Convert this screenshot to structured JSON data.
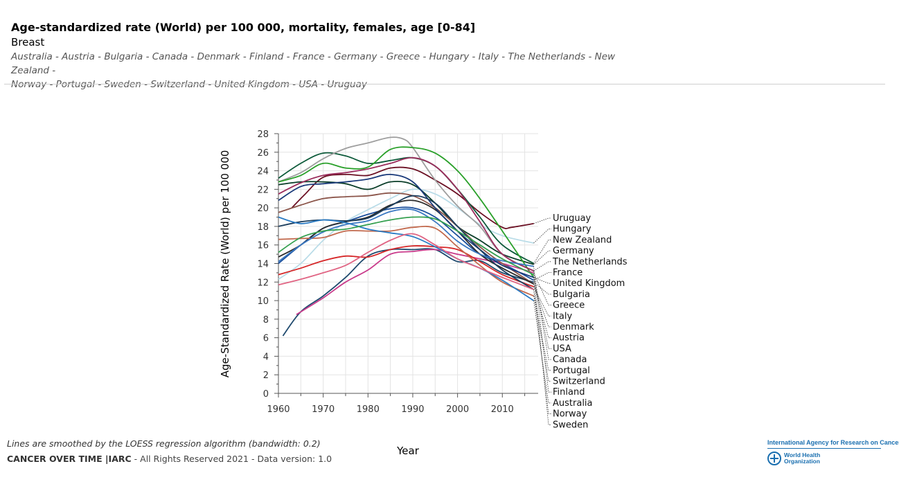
{
  "header": {
    "title": "Age-standardized rate (World) per 100 000, mortality, females, age [0-84]",
    "subtitle": "Breast",
    "countries_line1": "Australia - Austria - Bulgaria - Canada - Denmark - Finland - France - Germany - Greece - Hungary - Italy - The Netherlands - New Zealand -",
    "countries_line2": "Norway - Portugal - Sweden - Switzerland - United Kingdom - USA - Uruguay"
  },
  "footer": {
    "note": "Lines are smoothed by the LOESS regression algorithm (bandwidth: 0.2)",
    "brand": "CANCER OVER TIME |IARC",
    "rights": " - All Rights Reserved 2021 - Data version: 1.0",
    "logo_iarc": "International Agency for Research on Cancer",
    "logo_who_1": "World Health",
    "logo_who_2": "Organization"
  },
  "chart_data": {
    "type": "line",
    "xlabel": "Year",
    "ylabel": "Age-Standardized Rate (World) per 100 000",
    "xlim": [
      1960,
      2018
    ],
    "ylim": [
      0,
      28
    ],
    "x_ticks": [
      1960,
      1970,
      1980,
      1990,
      2000,
      2010
    ],
    "y_ticks": [
      0,
      2,
      4,
      6,
      8,
      10,
      12,
      14,
      16,
      18,
      20,
      22,
      24,
      26,
      28
    ],
    "grid": true,
    "legend": "right-end labels",
    "series": [
      {
        "name": "Uruguay",
        "color": "#6b1023",
        "x": [
          1963,
          1966,
          1970,
          1975,
          1980,
          1985,
          1990,
          1995,
          2000,
          2005,
          2010,
          2012,
          2017
        ],
        "values": [
          20,
          21.5,
          23.3,
          23.6,
          23.5,
          24.3,
          24.2,
          23,
          21.5,
          19.5,
          17.9,
          17.9,
          18.3
        ]
      },
      {
        "name": "Hungary",
        "color": "#b9dce8",
        "x": [
          1960,
          1965,
          1970,
          1975,
          1980,
          1985,
          1990,
          1995,
          2000,
          2005,
          2010,
          2017
        ],
        "values": [
          12.3,
          14,
          16.5,
          18.5,
          19.8,
          21,
          22,
          21.5,
          20,
          18.2,
          17,
          16.2
        ]
      },
      {
        "name": "New Zealand",
        "color": "#0d5a3a",
        "x": [
          1960,
          1965,
          1970,
          1975,
          1980,
          1985,
          1990,
          1995,
          2000,
          2005,
          2010,
          2017
        ],
        "values": [
          23.2,
          24.8,
          25.9,
          25.6,
          24.8,
          25.1,
          25.4,
          24.5,
          22,
          19,
          16,
          14
        ]
      },
      {
        "name": "Germany",
        "color": "#0a3d28",
        "x": [
          1960,
          1965,
          1970,
          1975,
          1980,
          1985,
          1990,
          1995,
          2000,
          2005,
          2010,
          2017
        ],
        "values": [
          22.5,
          22.8,
          22.8,
          22.6,
          22,
          22.8,
          22.5,
          20.5,
          18,
          16.5,
          15,
          13.9
        ]
      },
      {
        "name": "The Netherlands",
        "color": "#9e9e9e",
        "x": [
          1960,
          1965,
          1970,
          1975,
          1980,
          1985,
          1988,
          1990,
          1995,
          2000,
          2005,
          2010,
          2017
        ],
        "values": [
          22.8,
          23.8,
          25.3,
          26.4,
          27,
          27.6,
          27.4,
          26.5,
          23,
          20.2,
          18,
          15,
          13.2
        ]
      },
      {
        "name": "France",
        "color": "#1b4f9c",
        "x": [
          1960,
          1965,
          1970,
          1975,
          1980,
          1985,
          1990,
          1995,
          2000,
          2005,
          2010,
          2017
        ],
        "values": [
          14,
          16,
          17.8,
          18.5,
          19.3,
          19.9,
          20,
          19,
          17,
          15,
          14,
          12.2
        ]
      },
      {
        "name": "United Kingdom",
        "color": "#2aa02a",
        "x": [
          1960,
          1965,
          1970,
          1975,
          1980,
          1985,
          1990,
          1995,
          2000,
          2005,
          2010,
          2017
        ],
        "values": [
          22.8,
          23.5,
          24.8,
          24.3,
          24.4,
          26.3,
          26.5,
          25.9,
          24,
          21,
          17.5,
          12.5
        ]
      },
      {
        "name": "Bulgaria",
        "color": "#1f4a6e",
        "x": [
          1961,
          1965,
          1970,
          1975,
          1980,
          1985,
          1990,
          1995,
          2000,
          2005,
          2010,
          2017
        ],
        "values": [
          6.2,
          8.8,
          10.5,
          12.5,
          14.8,
          15.5,
          15.5,
          15.5,
          14.2,
          14.3,
          13,
          12
        ]
      },
      {
        "name": "Greece",
        "color": "#c93a8b",
        "x": [
          1964,
          1970,
          1975,
          1980,
          1985,
          1990,
          1995,
          2000,
          2005,
          2010,
          2017
        ],
        "values": [
          8.5,
          10.3,
          12,
          13.3,
          15,
          15.3,
          15.5,
          15,
          14.5,
          14,
          13
        ]
      },
      {
        "name": "Italy",
        "color": "#d62728",
        "x": [
          1960,
          1965,
          1970,
          1975,
          1980,
          1985,
          1990,
          1995,
          2000,
          2005,
          2010,
          2017
        ],
        "values": [
          12.8,
          13.5,
          14.3,
          14.8,
          14.7,
          15.5,
          15.9,
          15.8,
          15.5,
          14.2,
          12.8,
          11.5
        ]
      },
      {
        "name": "Denmark",
        "color": "#8c564b",
        "x": [
          1960,
          1965,
          1970,
          1975,
          1980,
          1985,
          1990,
          1995,
          2000,
          2005,
          2010,
          2017
        ],
        "values": [
          19.5,
          20.3,
          21,
          21.2,
          21.3,
          21.6,
          21.3,
          20,
          18,
          15.8,
          14,
          11.8
        ]
      },
      {
        "name": "Austria",
        "color": "#2b2b2b",
        "x": [
          1960,
          1965,
          1970,
          1975,
          1980,
          1985,
          1990,
          1995,
          2000,
          2005,
          2010,
          2017
        ],
        "values": [
          14.7,
          16,
          17.8,
          18.5,
          19,
          20.3,
          20.8,
          19.8,
          17.5,
          15,
          13.5,
          11.8
        ]
      },
      {
        "name": "USA",
        "color": "#1a3a7a",
        "x": [
          1960,
          1965,
          1970,
          1975,
          1980,
          1985,
          1990,
          1995,
          2000,
          2005,
          2010,
          2017
        ],
        "values": [
          20.8,
          22.3,
          22.6,
          22.8,
          23.1,
          23.6,
          22.8,
          20,
          17.5,
          15.5,
          13.8,
          12.5
        ]
      },
      {
        "name": "Canada",
        "color": "#9b2d5c",
        "x": [
          1960,
          1965,
          1970,
          1975,
          1980,
          1985,
          1990,
          1995,
          2000,
          2005,
          2010,
          2017
        ],
        "values": [
          21.5,
          22.7,
          23.5,
          23.8,
          24.2,
          24.8,
          25.4,
          24.5,
          22,
          18.5,
          15,
          13.2
        ]
      },
      {
        "name": "Portugal",
        "color": "#c26a4e",
        "x": [
          1960,
          1965,
          1970,
          1975,
          1980,
          1985,
          1990,
          1995,
          2000,
          2005,
          2010,
          2017
        ],
        "values": [
          16.6,
          16.7,
          16.8,
          17.5,
          17.5,
          17.5,
          17.9,
          17.8,
          15.8,
          13.8,
          12,
          10.5
        ]
      },
      {
        "name": "Switzerland",
        "color": "#1c3e5e",
        "x": [
          1960,
          1965,
          1970,
          1975,
          1980,
          1985,
          1990,
          1995,
          2000,
          2005,
          2010,
          2017
        ],
        "values": [
          18,
          18.5,
          18.7,
          18.6,
          18.9,
          20.2,
          21.3,
          20.5,
          18,
          15.5,
          13.3,
          11.2
        ]
      },
      {
        "name": "Finland",
        "color": "#3a78c2",
        "x": [
          1960,
          1965,
          1970,
          1975,
          1980,
          1985,
          1990,
          1995,
          2000,
          2005,
          2010,
          2017
        ],
        "values": [
          14.2,
          16,
          17.4,
          18.2,
          18.6,
          19.6,
          19.8,
          18.5,
          16.4,
          15,
          14.3,
          13.7
        ]
      },
      {
        "name": "Australia",
        "color": "#2a7bc4",
        "x": [
          1960,
          1965,
          1970,
          1975,
          1980,
          1985,
          1990,
          1995,
          2000,
          2005,
          2010,
          2017
        ],
        "values": [
          19,
          18.3,
          18.7,
          18.4,
          17.7,
          17.3,
          16.9,
          15.8,
          14.5,
          13.5,
          12.2,
          10
        ]
      },
      {
        "name": "Norway",
        "color": "#e06483",
        "x": [
          1960,
          1965,
          1970,
          1975,
          1980,
          1985,
          1990,
          1995,
          2000,
          2005,
          2010,
          2017
        ],
        "values": [
          11.7,
          12.3,
          13,
          13.8,
          15.2,
          16.5,
          17.2,
          16,
          14.5,
          13.5,
          12.5,
          11.2
        ]
      },
      {
        "name": "Sweden",
        "color": "#35a050",
        "x": [
          1960,
          1965,
          1970,
          1975,
          1980,
          1985,
          1990,
          1995,
          2000,
          2005,
          2010,
          2017
        ],
        "values": [
          15.2,
          16.8,
          17.5,
          17.7,
          18.2,
          18.7,
          19,
          18.8,
          17.5,
          16,
          14.5,
          12.8
        ]
      }
    ]
  }
}
